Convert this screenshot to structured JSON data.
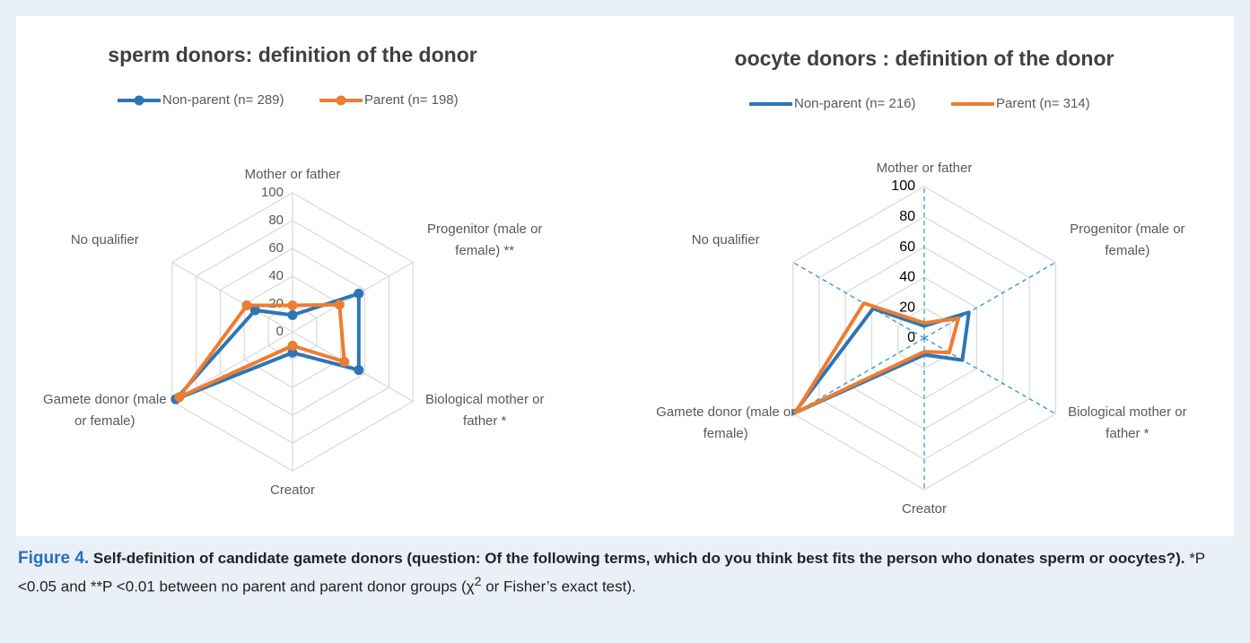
{
  "chart_data": [
    {
      "type": "radar",
      "title": "sperm donors: definition of the donor",
      "categories": [
        "Mother or father",
        "Progenitor (male or female)  **",
        "Biological mother or father  *",
        "Creator",
        "Gamete donor (male or female)",
        "No qualifier"
      ],
      "series": [
        {
          "name": "Non-parent (n= 289)",
          "color": "#2e75b6",
          "values": [
            12,
            55,
            55,
            15,
            97,
            31
          ]
        },
        {
          "name": "Parent (n= 198)",
          "color": "#ed7d31",
          "values": [
            19,
            39,
            43,
            10,
            94,
            38
          ]
        }
      ],
      "ylim": [
        0,
        100
      ],
      "yticks": [
        0,
        20,
        40,
        60,
        80,
        100
      ],
      "grid": true,
      "markers": true,
      "spokes": false,
      "legend": "top"
    },
    {
      "type": "radar",
      "title": "oocyte donors : definition of the donor",
      "categories": [
        "Mother or father",
        "Progenitor (male or female)",
        "Biological mother or father  *",
        "Creator",
        "Gamete donor (male or female)",
        "No qualifier"
      ],
      "series": [
        {
          "name": "Non-parent (n= 216)",
          "color": "#2e75b6",
          "values": [
            8,
            34,
            29,
            11,
            99,
            39
          ]
        },
        {
          "name": "Parent (n= 314)",
          "color": "#ed7d31",
          "values": [
            10,
            26,
            19,
            9,
            98,
            46
          ]
        }
      ],
      "ylim": [
        0,
        100
      ],
      "yticks": [
        0,
        20,
        40,
        60,
        80,
        100
      ],
      "grid": true,
      "markers": false,
      "spokes": true,
      "legend": "top"
    }
  ],
  "caption": {
    "label": "Figure 4.",
    "title": "Self-definition of candidate gamete donors (question: Of the following terms, which do you think best fits the person who donates sperm or oocytes?).",
    "note_before": "*P <0.05 and **P <0.01 between no parent and parent donor groups (χ",
    "note_sup": "2",
    "note_after": " or Fisher’s exact test)."
  }
}
